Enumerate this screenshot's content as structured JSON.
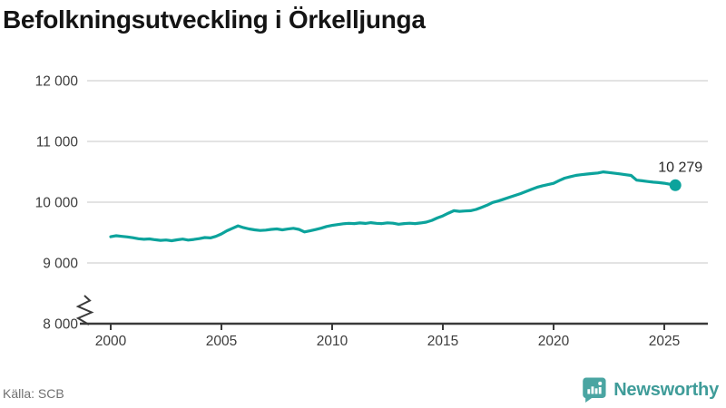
{
  "title": "Befolkningsutveckling i Örkelljunga",
  "source": "Källa: SCB",
  "brand": {
    "name": "Newsworthy",
    "text_color": "#3f9c99",
    "icon_color": "#4aa5a2"
  },
  "chart_data": {
    "type": "line",
    "title": "Befolkningsutveckling i Örkelljunga",
    "xlabel": "",
    "ylabel": "",
    "grid": true,
    "line_color": "#0ca39c",
    "gridline_color": "#e3e3e3",
    "axis_color": "#3a3a3a",
    "tick_label_color": "#3d3d3d",
    "end_label": "10 279",
    "end_value": 10279,
    "end_label_color": "#262626",
    "y_axis_break": true,
    "ylim_visible": [
      8000,
      12000
    ],
    "xlim": [
      2000,
      2026.9
    ],
    "y_ticks": [
      {
        "value": 12000,
        "label": "12 000"
      },
      {
        "value": 11000,
        "label": "11 000"
      },
      {
        "value": 10000,
        "label": "10 000"
      },
      {
        "value": 9000,
        "label": "9 000"
      },
      {
        "value": 8000,
        "label": "8 000"
      }
    ],
    "x_ticks": [
      {
        "value": 2000,
        "label": "2000"
      },
      {
        "value": 2005,
        "label": "2005"
      },
      {
        "value": 2010,
        "label": "2010"
      },
      {
        "value": 2015,
        "label": "2015"
      },
      {
        "value": 2020,
        "label": "2020"
      },
      {
        "value": 2025,
        "label": "2025"
      }
    ],
    "series": [
      {
        "name": "Befolkning",
        "points": [
          [
            2000.0,
            9432
          ],
          [
            2000.25,
            9448
          ],
          [
            2000.5,
            9438
          ],
          [
            2000.75,
            9428
          ],
          [
            2001.0,
            9415
          ],
          [
            2001.25,
            9398
          ],
          [
            2001.5,
            9390
          ],
          [
            2001.75,
            9396
          ],
          [
            2002.0,
            9382
          ],
          [
            2002.25,
            9372
          ],
          [
            2002.5,
            9378
          ],
          [
            2002.75,
            9366
          ],
          [
            2003.0,
            9380
          ],
          [
            2003.25,
            9392
          ],
          [
            2003.5,
            9376
          ],
          [
            2003.75,
            9386
          ],
          [
            2004.0,
            9400
          ],
          [
            2004.25,
            9418
          ],
          [
            2004.5,
            9412
          ],
          [
            2004.75,
            9438
          ],
          [
            2005.0,
            9478
          ],
          [
            2005.25,
            9530
          ],
          [
            2005.5,
            9570
          ],
          [
            2005.75,
            9610
          ],
          [
            2006.0,
            9580
          ],
          [
            2006.25,
            9560
          ],
          [
            2006.5,
            9545
          ],
          [
            2006.75,
            9535
          ],
          [
            2007.0,
            9540
          ],
          [
            2007.25,
            9552
          ],
          [
            2007.5,
            9560
          ],
          [
            2007.75,
            9545
          ],
          [
            2008.0,
            9558
          ],
          [
            2008.25,
            9570
          ],
          [
            2008.5,
            9552
          ],
          [
            2008.75,
            9510
          ],
          [
            2009.0,
            9528
          ],
          [
            2009.25,
            9550
          ],
          [
            2009.5,
            9572
          ],
          [
            2009.75,
            9600
          ],
          [
            2010.0,
            9618
          ],
          [
            2010.25,
            9632
          ],
          [
            2010.5,
            9645
          ],
          [
            2010.75,
            9652
          ],
          [
            2011.0,
            9648
          ],
          [
            2011.25,
            9658
          ],
          [
            2011.5,
            9650
          ],
          [
            2011.75,
            9662
          ],
          [
            2012.0,
            9652
          ],
          [
            2012.25,
            9648
          ],
          [
            2012.5,
            9660
          ],
          [
            2012.75,
            9654
          ],
          [
            2013.0,
            9638
          ],
          [
            2013.25,
            9648
          ],
          [
            2013.5,
            9654
          ],
          [
            2013.75,
            9648
          ],
          [
            2014.0,
            9658
          ],
          [
            2014.25,
            9672
          ],
          [
            2014.5,
            9700
          ],
          [
            2014.75,
            9740
          ],
          [
            2015.0,
            9775
          ],
          [
            2015.25,
            9820
          ],
          [
            2015.5,
            9860
          ],
          [
            2015.75,
            9850
          ],
          [
            2016.0,
            9855
          ],
          [
            2016.25,
            9860
          ],
          [
            2016.5,
            9880
          ],
          [
            2016.75,
            9915
          ],
          [
            2017.0,
            9950
          ],
          [
            2017.25,
            9995
          ],
          [
            2017.5,
            10020
          ],
          [
            2017.75,
            10050
          ],
          [
            2018.0,
            10080
          ],
          [
            2018.25,
            10110
          ],
          [
            2018.5,
            10140
          ],
          [
            2018.75,
            10175
          ],
          [
            2019.0,
            10210
          ],
          [
            2019.25,
            10245
          ],
          [
            2019.5,
            10270
          ],
          [
            2019.75,
            10290
          ],
          [
            2020.0,
            10310
          ],
          [
            2020.25,
            10355
          ],
          [
            2020.5,
            10395
          ],
          [
            2020.75,
            10420
          ],
          [
            2021.0,
            10440
          ],
          [
            2021.25,
            10452
          ],
          [
            2021.5,
            10462
          ],
          [
            2021.75,
            10472
          ],
          [
            2022.0,
            10480
          ],
          [
            2022.25,
            10498
          ],
          [
            2022.5,
            10488
          ],
          [
            2022.75,
            10476
          ],
          [
            2023.0,
            10466
          ],
          [
            2023.25,
            10452
          ],
          [
            2023.5,
            10440
          ],
          [
            2023.75,
            10362
          ],
          [
            2024.0,
            10352
          ],
          [
            2024.25,
            10340
          ],
          [
            2024.5,
            10330
          ],
          [
            2024.75,
            10322
          ],
          [
            2025.0,
            10312
          ],
          [
            2025.25,
            10295
          ],
          [
            2025.5,
            10279
          ]
        ]
      }
    ]
  }
}
